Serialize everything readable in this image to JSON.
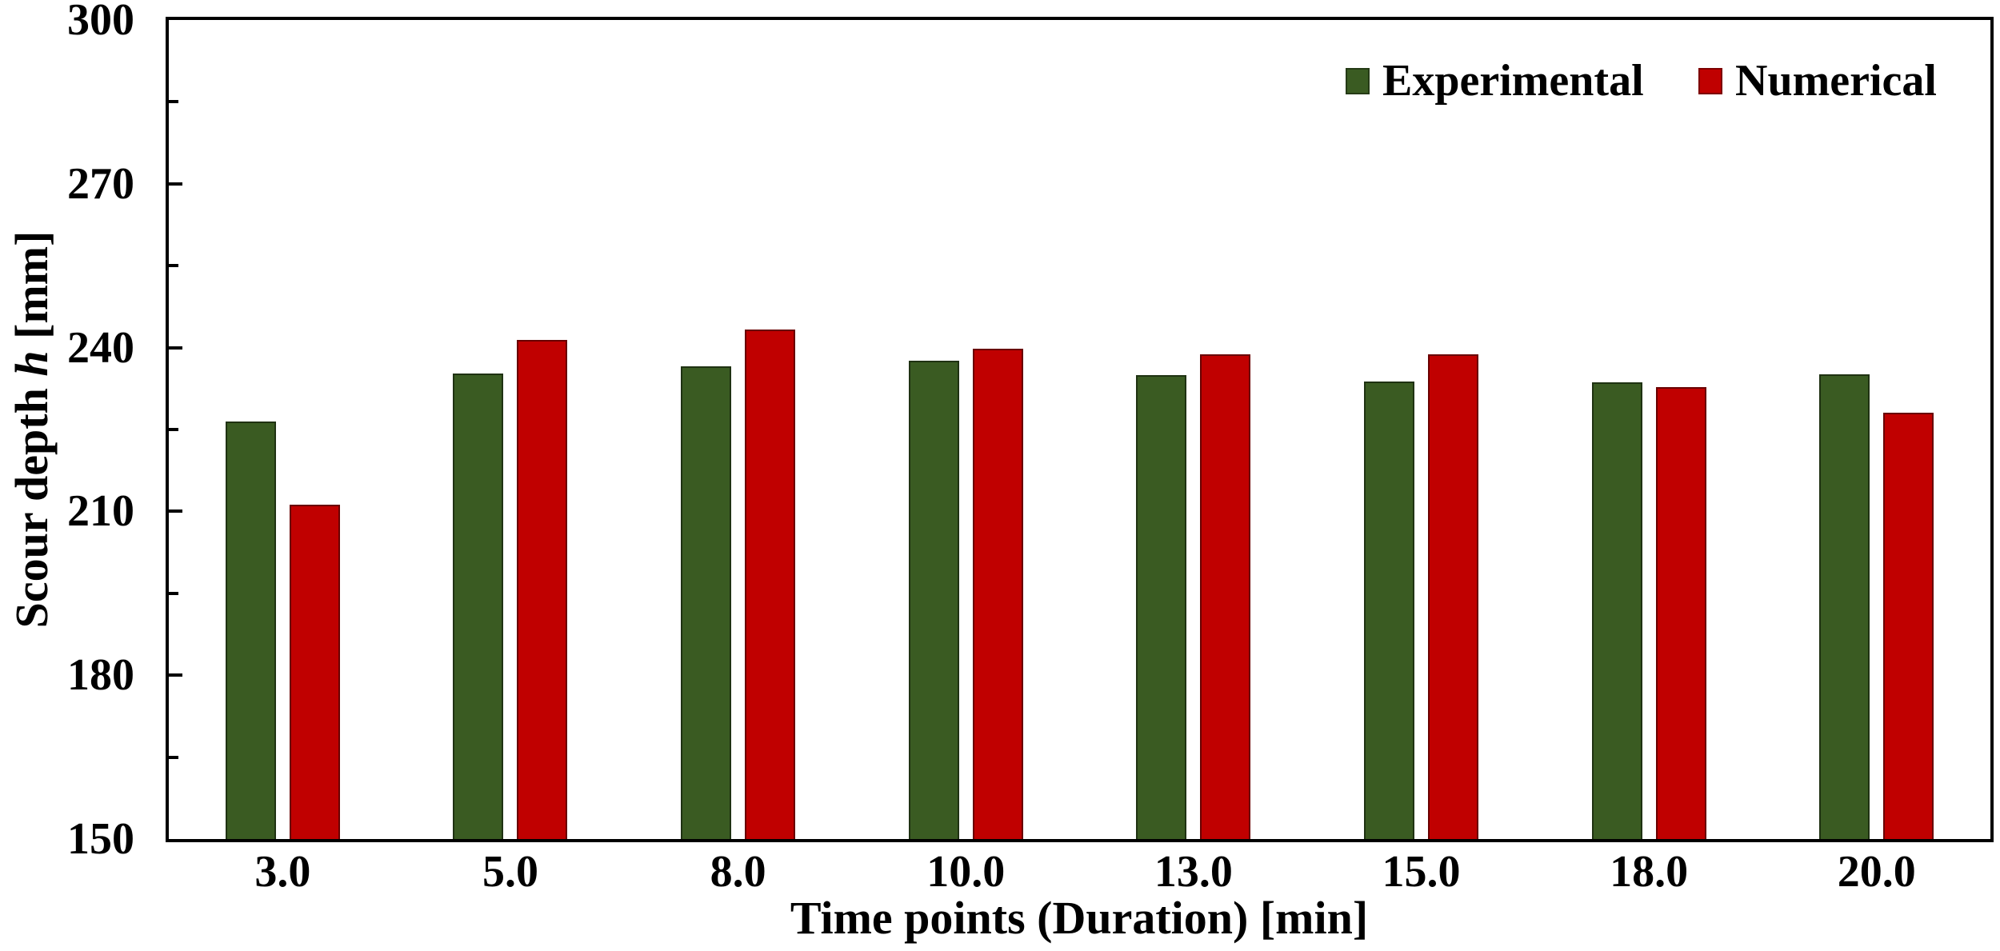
{
  "chart_data": {
    "type": "bar",
    "title": "",
    "xlabel": "Time points (Duration) [min]",
    "ylabel": "Scour depth h [mm]",
    "ylabel_parts": {
      "prefix": "Scour depth ",
      "symbol": "h",
      "suffix": " [mm]"
    },
    "ylim": [
      150,
      300
    ],
    "y_major_ticks": [
      150,
      180,
      210,
      240,
      270,
      300
    ],
    "y_minor_step": 15,
    "grid": false,
    "legend_position": "top-right-inside",
    "categories": [
      "3.0",
      "5.0",
      "8.0",
      "10.0",
      "13.0",
      "15.0",
      "18.0",
      "20.0"
    ],
    "series": [
      {
        "name": "Experimental",
        "color": "#3A5B22",
        "values": [
          226.4,
          235.3,
          236.5,
          237.6,
          234.9,
          233.8,
          233.7,
          235.1
        ]
      },
      {
        "name": "Numerical",
        "color": "#C00000",
        "values": [
          211.3,
          241.4,
          243.3,
          239.8,
          238.7,
          238.7,
          232.8,
          228.1
        ]
      }
    ]
  },
  "colors": {
    "axis": "#000000",
    "text": "#000000",
    "background": "#ffffff"
  }
}
